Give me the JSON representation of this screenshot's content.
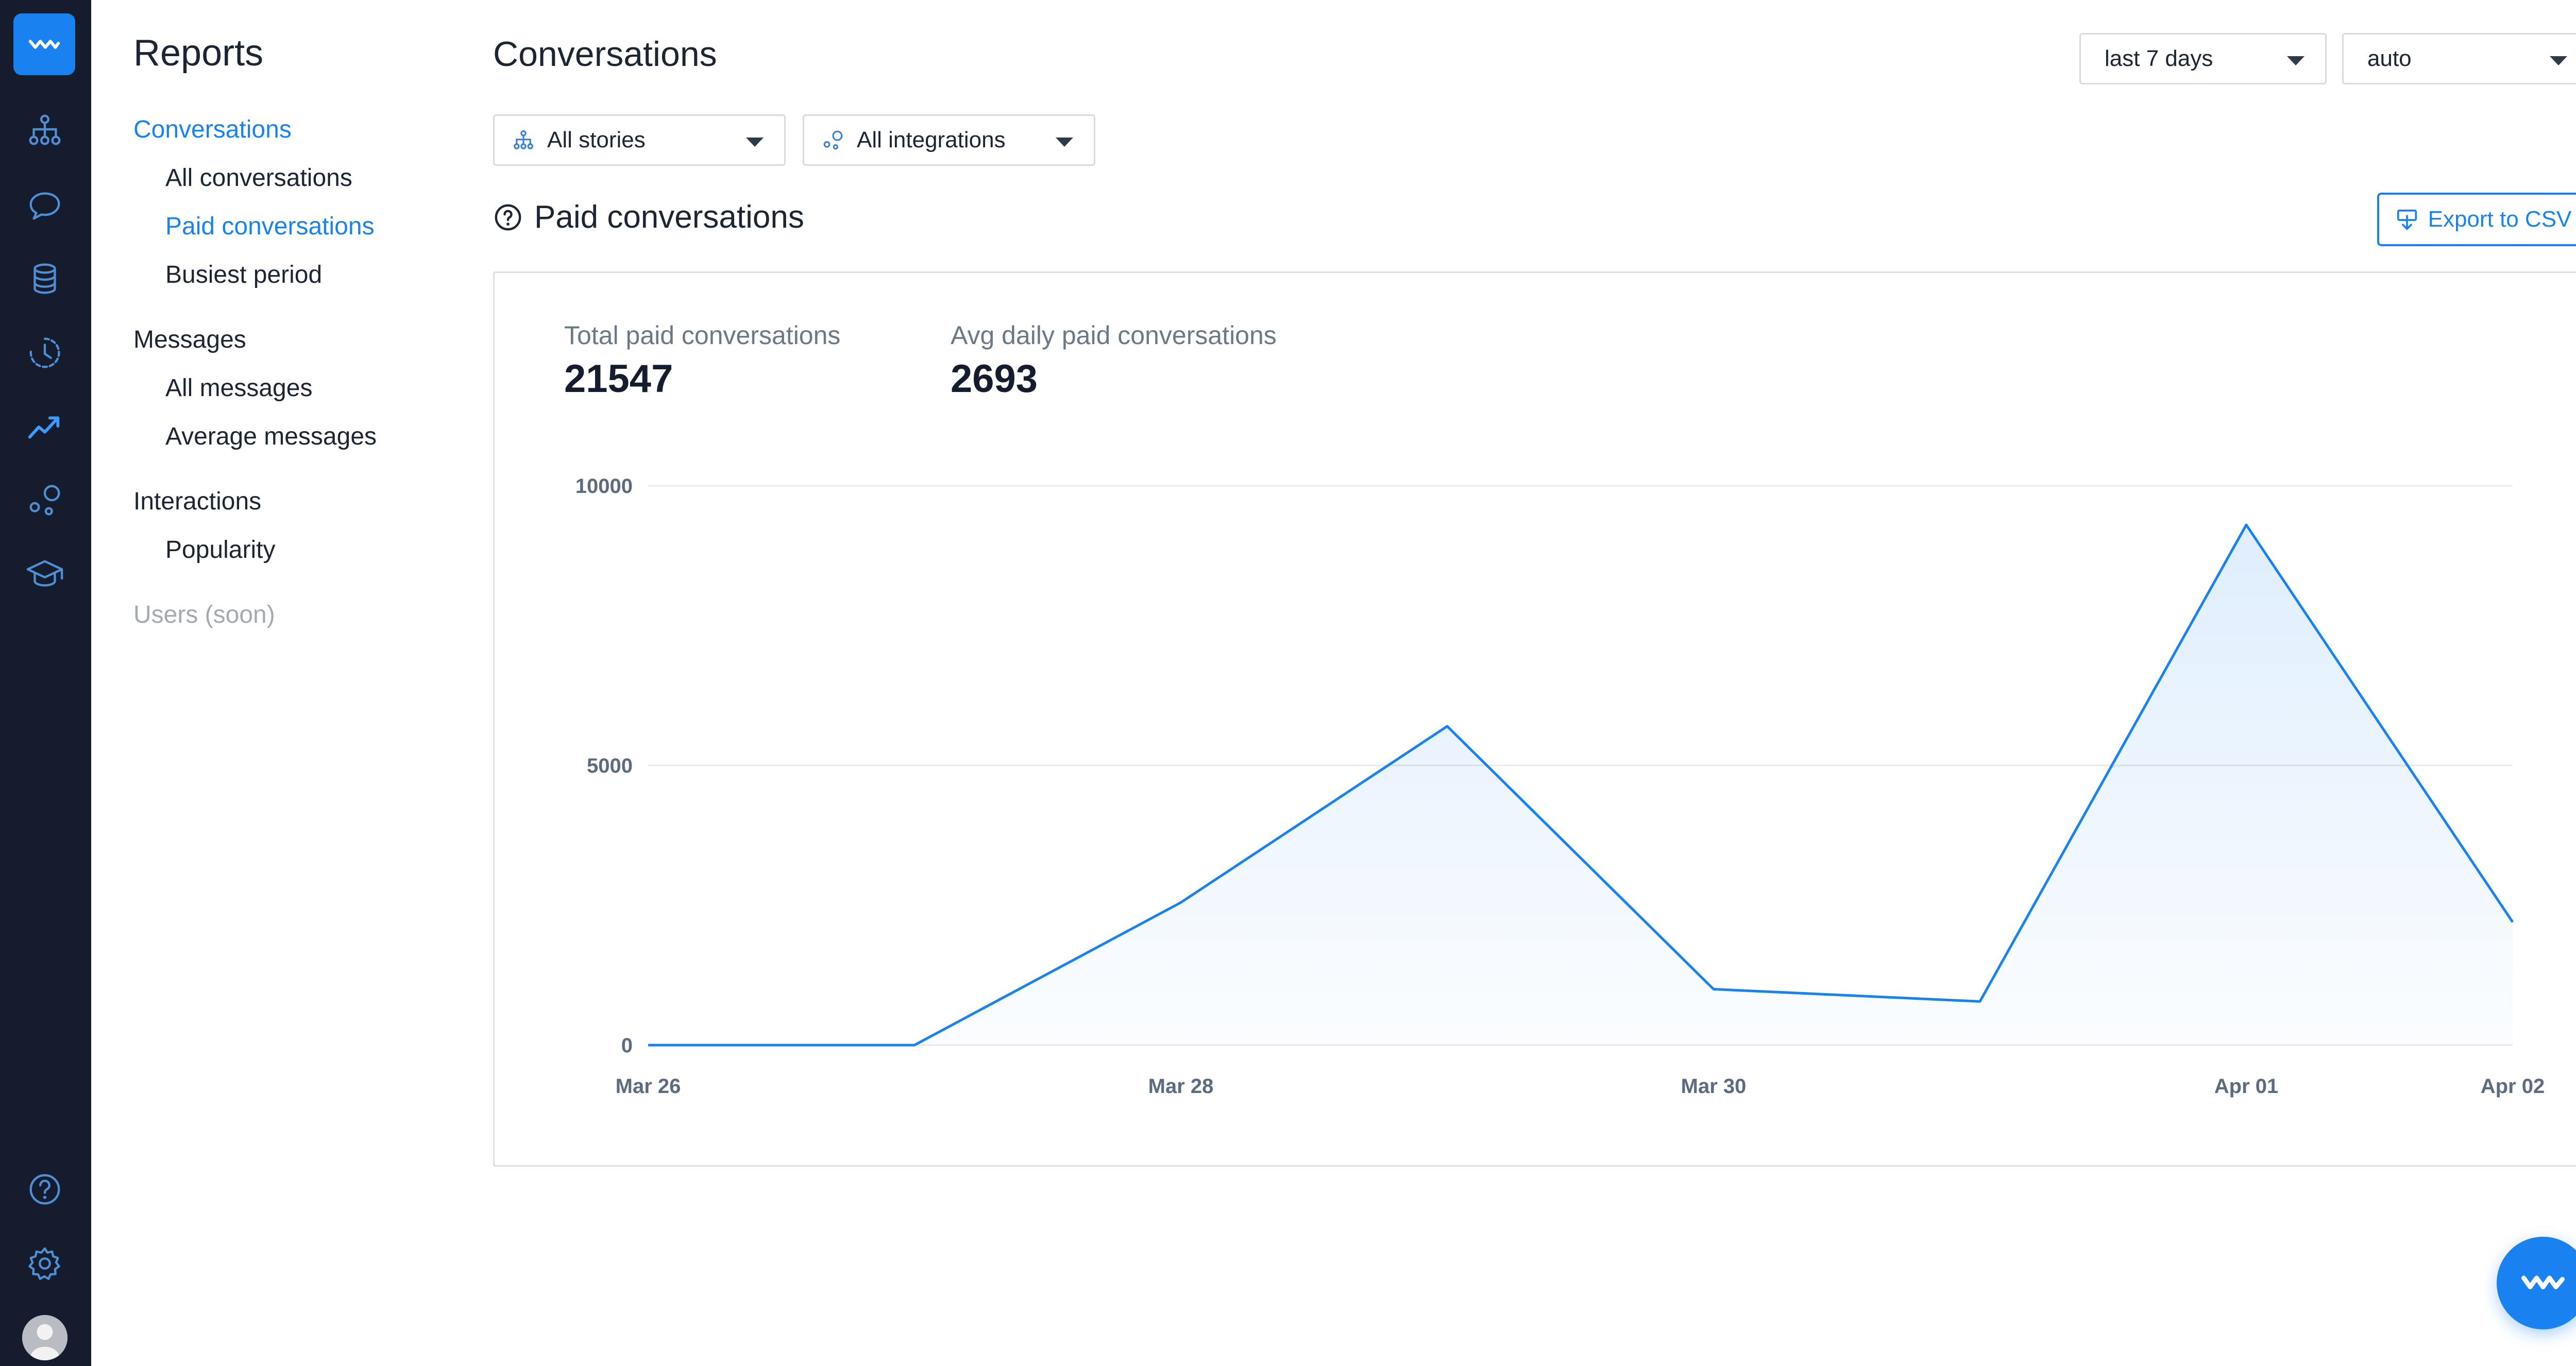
{
  "sidebar_icons": [
    {
      "name": "logo-icon",
      "icon": "wave"
    },
    {
      "name": "stories-icon",
      "icon": "sitemap"
    },
    {
      "name": "chat-icon",
      "icon": "speech-bubble"
    },
    {
      "name": "database-icon",
      "icon": "database"
    },
    {
      "name": "history-icon",
      "icon": "clock-dashed"
    },
    {
      "name": "reports-icon",
      "icon": "trend-up",
      "active": true
    },
    {
      "name": "integrations-icon",
      "icon": "bubbles"
    },
    {
      "name": "academy-icon",
      "icon": "graduation-cap"
    },
    {
      "name": "help-icon",
      "icon": "question-circle"
    },
    {
      "name": "settings-icon",
      "icon": "gear"
    },
    {
      "name": "avatar",
      "icon": "user-avatar"
    }
  ],
  "subnav": {
    "title": "Reports",
    "groups": [
      {
        "label": "Conversations",
        "active": true,
        "items": [
          {
            "label": "All conversations",
            "active": false
          },
          {
            "label": "Paid conversations",
            "active": true
          },
          {
            "label": "Busiest period",
            "active": false
          }
        ]
      },
      {
        "label": "Messages",
        "active": false,
        "items": [
          {
            "label": "All messages",
            "active": false
          },
          {
            "label": "Average messages",
            "active": false
          }
        ]
      },
      {
        "label": "Interactions",
        "active": false,
        "items": [
          {
            "label": "Popularity",
            "active": false
          }
        ]
      }
    ],
    "disabled_item": "Users (soon)"
  },
  "header": {
    "title": "Conversations",
    "period_select": "last 7 days",
    "granularity_select": "auto"
  },
  "filters": {
    "stories": "All stories",
    "integrations": "All integrations"
  },
  "section": {
    "title": "Paid conversations",
    "export_label": "Export to CSV"
  },
  "kpis": {
    "total_label": "Total paid conversations",
    "total_value": "21547",
    "avg_label": "Avg daily paid conversations",
    "avg_value": "2693"
  },
  "colors": {
    "accent": "#1a82f0",
    "rail_bg": "#141c2e",
    "line": "#1a82f0"
  },
  "chart_data": {
    "type": "area",
    "x": [
      "2024-03-26",
      "2024-03-27",
      "2024-03-28",
      "2024-03-29",
      "2024-03-30",
      "2024-03-31",
      "2024-04-01",
      "2024-04-02"
    ],
    "x_tick_labels": [
      "Mar 26",
      "Mar 28",
      "Mar 30",
      "Apr 01",
      "Apr 02"
    ],
    "x_tick_positions": [
      0,
      2,
      4,
      6,
      7
    ],
    "values": [
      0,
      0,
      2550,
      5700,
      1000,
      780,
      9300,
      2200
    ],
    "y_ticks": [
      0,
      5000,
      10000
    ],
    "ylim": [
      0,
      10000
    ],
    "grid": true,
    "title": "",
    "xlabel": "",
    "ylabel": ""
  }
}
